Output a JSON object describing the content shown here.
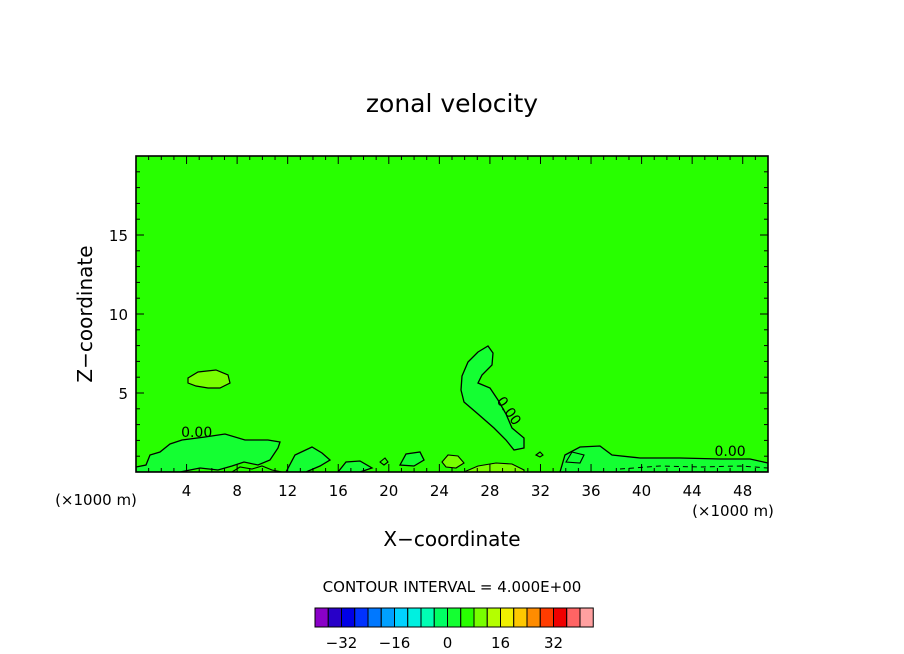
{
  "chart_data": {
    "type": "heatmap",
    "title": "zonal velocity",
    "xlabel": "X−coordinate",
    "ylabel": "Z−coordinate",
    "x_unit_left": "(×1000 m)",
    "x_unit_right": "(×1000 m)",
    "xlim": [
      0,
      50
    ],
    "ylim": [
      0,
      20
    ],
    "x_ticks": [
      4,
      8,
      12,
      16,
      20,
      24,
      28,
      32,
      36,
      40,
      44,
      48
    ],
    "x_tick_labels": [
      "4",
      "8",
      "12",
      "16",
      "20",
      "24",
      "28",
      "32",
      "36",
      "40",
      "44",
      "48"
    ],
    "y_ticks": [
      5,
      10,
      15
    ],
    "y_tick_labels": [
      "5",
      "10",
      "15"
    ],
    "background_field_value": 0,
    "contour_interval_text": "CONTOUR INTERVAL = 4.000E+00",
    "contour_labels": [
      {
        "text": "0.00",
        "x": 4.8,
        "z": 2.2
      },
      {
        "text": "0.00",
        "x": 47.0,
        "z": 1.0
      },
      {
        "text": "0.00",
        "x": 29.2,
        "z": 3.7,
        "rotate": 55
      }
    ],
    "colorbar": {
      "levels": [
        -36,
        -32,
        -28,
        -24,
        -20,
        -16,
        -12,
        -8,
        -4,
        0,
        4,
        8,
        12,
        16,
        20,
        24,
        28,
        32,
        36
      ],
      "colors": [
        "#8a00c8",
        "#2800c8",
        "#0000e6",
        "#0032ff",
        "#0078ff",
        "#00a0ff",
        "#00d2ff",
        "#00f0e0",
        "#00ffb4",
        "#00ff64",
        "#14ff32",
        "#28ff00",
        "#78ff00",
        "#b4ff00",
        "#f0f000",
        "#ffc800",
        "#ff8c00",
        "#ff3c00",
        "#f00000",
        "#ff6464",
        "#ffa0a0"
      ],
      "tick_values": [
        -32,
        -16,
        0,
        16,
        32
      ],
      "tick_labels": [
        "−32",
        "−16",
        "0",
        "16",
        "32"
      ]
    }
  }
}
